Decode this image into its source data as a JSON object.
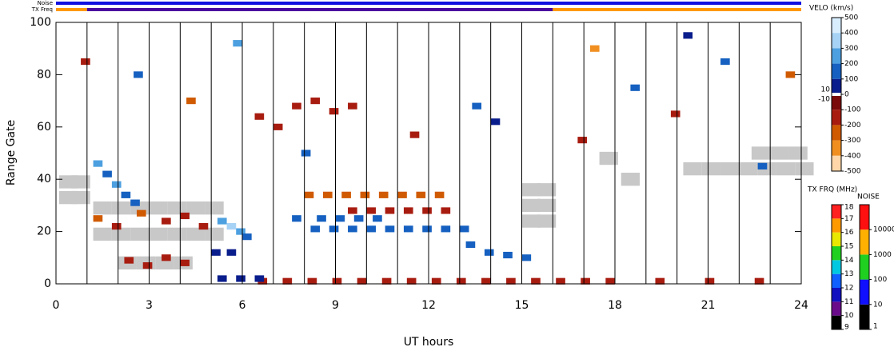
{
  "chart_data": {
    "type": "range-time",
    "xlabel": "UT hours",
    "ylabel": "Range Gate",
    "xlim": [
      0,
      24
    ],
    "ylim": [
      0,
      100
    ],
    "xticks": [
      0,
      3,
      6,
      9,
      12,
      15,
      18,
      21,
      24
    ],
    "yticks": [
      0,
      20,
      40,
      60,
      80,
      100
    ],
    "hour_lines": [
      1,
      2,
      3,
      4,
      5,
      6,
      7,
      8,
      9,
      10,
      11,
      12,
      13,
      14,
      15,
      16,
      17,
      18,
      19,
      20,
      21,
      22,
      23
    ],
    "noise_bar": {
      "label": "Noise",
      "color": "#1010e0"
    },
    "tx_freq_bar": {
      "label": "TX Freq",
      "breaks": [
        0,
        1,
        16,
        24
      ],
      "colors": [
        "#ff9900",
        "#4a0aa0",
        "#ff9900"
      ]
    },
    "velocity_scale": {
      "title": "VELO (km/s)",
      "ticks": [
        500,
        400,
        300,
        200,
        100,
        0,
        -100,
        -200,
        -300,
        -400,
        -500
      ],
      "inner_ticks": [
        10,
        -10
      ],
      "colors": [
        "#d8eeff",
        "#a6d2f5",
        "#4da0e0",
        "#1560c0",
        "#0a1d8c",
        "#7a0a0a",
        "#a81c10",
        "#d05a00",
        "#f08f20",
        "#ffd6a8"
      ]
    },
    "tx_freq_scale": {
      "title": "TX FRQ (MHz)",
      "ticks": [
        9,
        10,
        11,
        12,
        13,
        14,
        15,
        16,
        17,
        18
      ],
      "colors": [
        "#000000",
        "#6a0a8a",
        "#1010c0",
        "#1060ff",
        "#00c8e0",
        "#20d020",
        "#e8e800",
        "#ff9900",
        "#ff2020"
      ]
    },
    "noise_scale": {
      "title": "NOISE",
      "ticks": [
        1,
        10,
        100,
        1000,
        10000
      ],
      "colors": [
        "#000000",
        "#1010ff",
        "#20d020",
        "#ffb000",
        "#ff1010"
      ]
    },
    "ground_color": "#c8c8c8",
    "velocity_cells": {
      "x": [
        6.5,
        7.3,
        8.1,
        8.9,
        9.7,
        10.5,
        11.3,
        12.1,
        12.9,
        13.7,
        14.5,
        15.3,
        16.1,
        16.9,
        17.7,
        19.3,
        20.9,
        22.5,
        5.2,
        5.8,
        6.4,
        8.0,
        8.6,
        9.2,
        9.8,
        10.4,
        11.0,
        11.6,
        12.2,
        9.4,
        10.0,
        10.6,
        11.2,
        11.8,
        12.4,
        8.2,
        8.8,
        9.4,
        10.0,
        10.6,
        11.2,
        11.8,
        12.4,
        13.0,
        7.6,
        8.4,
        9.0,
        9.6,
        10.2,
        5.2,
        5.5,
        5.8,
        6.0,
        5.0,
        5.5,
        1.2,
        1.8,
        2.6,
        3.4,
        4.0,
        4.6,
        2.2,
        2.8,
        3.4,
        4.0,
        1.2,
        1.5,
        1.8,
        2.1,
        2.4,
        6.4,
        7.0,
        7.6,
        8.2,
        8.8,
        9.4,
        13.2,
        13.8,
        14.4,
        15.0,
        0.8,
        2.5,
        4.2,
        5.7,
        7.9,
        11.4,
        13.4,
        14.0,
        17.2,
        18.5,
        19.8,
        21.4,
        22.6,
        23.5,
        20.2,
        16.8
      ],
      "y": [
        1,
        1,
        1,
        1,
        1,
        1,
        1,
        1,
        1,
        1,
        1,
        1,
        1,
        1,
        1,
        1,
        1,
        1,
        2,
        2,
        2,
        34,
        34,
        34,
        34,
        34,
        34,
        34,
        34,
        28,
        28,
        28,
        28,
        28,
        28,
        21,
        21,
        21,
        21,
        21,
        21,
        21,
        21,
        21,
        25,
        25,
        25,
        25,
        25,
        24,
        22,
        20,
        18,
        12,
        12,
        25,
        22,
        27,
        24,
        26,
        22,
        9,
        7,
        10,
        8,
        46,
        42,
        38,
        34,
        31,
        64,
        60,
        68,
        70,
        66,
        68,
        15,
        12,
        11,
        10,
        85,
        80,
        70,
        92,
        50,
        57,
        68,
        62,
        90,
        75,
        65,
        85,
        45,
        80,
        95,
        55
      ],
      "values": [
        -150,
        -150,
        -150,
        -150,
        -150,
        -150,
        -150,
        -150,
        -150,
        -150,
        -150,
        -150,
        -150,
        -150,
        -150,
        -150,
        -150,
        -150,
        80,
        80,
        80,
        -200,
        -200,
        -200,
        -200,
        -200,
        -200,
        -200,
        -200,
        -180,
        -180,
        -180,
        -180,
        -180,
        -180,
        120,
        120,
        120,
        120,
        120,
        120,
        120,
        120,
        120,
        150,
        150,
        150,
        150,
        150,
        300,
        350,
        250,
        200,
        100,
        100,
        -200,
        -150,
        -250,
        -120,
        -180,
        -160,
        -150,
        -150,
        -150,
        -150,
        250,
        200,
        300,
        180,
        120,
        -180,
        -180,
        -180,
        -180,
        -180,
        -180,
        120,
        120,
        120,
        120,
        -100,
        150,
        -250,
        300,
        200,
        -150,
        180,
        100,
        -300,
        120,
        -100,
        200,
        150,
        -200,
        80,
        -120
      ]
    },
    "ground_cells": {
      "x": [
        0.1,
        0.5,
        0.1,
        0.5,
        1.2,
        1.8,
        2.4,
        3.0,
        3.6,
        4.2,
        4.8,
        1.2,
        1.8,
        2.4,
        3.0,
        3.6,
        4.2,
        4.8,
        2.0,
        2.6,
        3.2,
        3.8,
        15.0,
        15.5,
        15.0,
        15.5,
        15.0,
        15.5,
        20.2,
        20.8,
        21.4,
        22.0,
        22.6,
        23.2,
        23.8,
        22.4,
        23.0,
        23.6,
        17.5,
        18.2
      ],
      "y": [
        33,
        33,
        39,
        39,
        19,
        19,
        19,
        19,
        19,
        19,
        19,
        29,
        29,
        29,
        29,
        29,
        29,
        29,
        8,
        8,
        8,
        8,
        24,
        24,
        30,
        30,
        36,
        36,
        44,
        44,
        44,
        44,
        44,
        44,
        44,
        50,
        50,
        50,
        48,
        40
      ]
    }
  }
}
